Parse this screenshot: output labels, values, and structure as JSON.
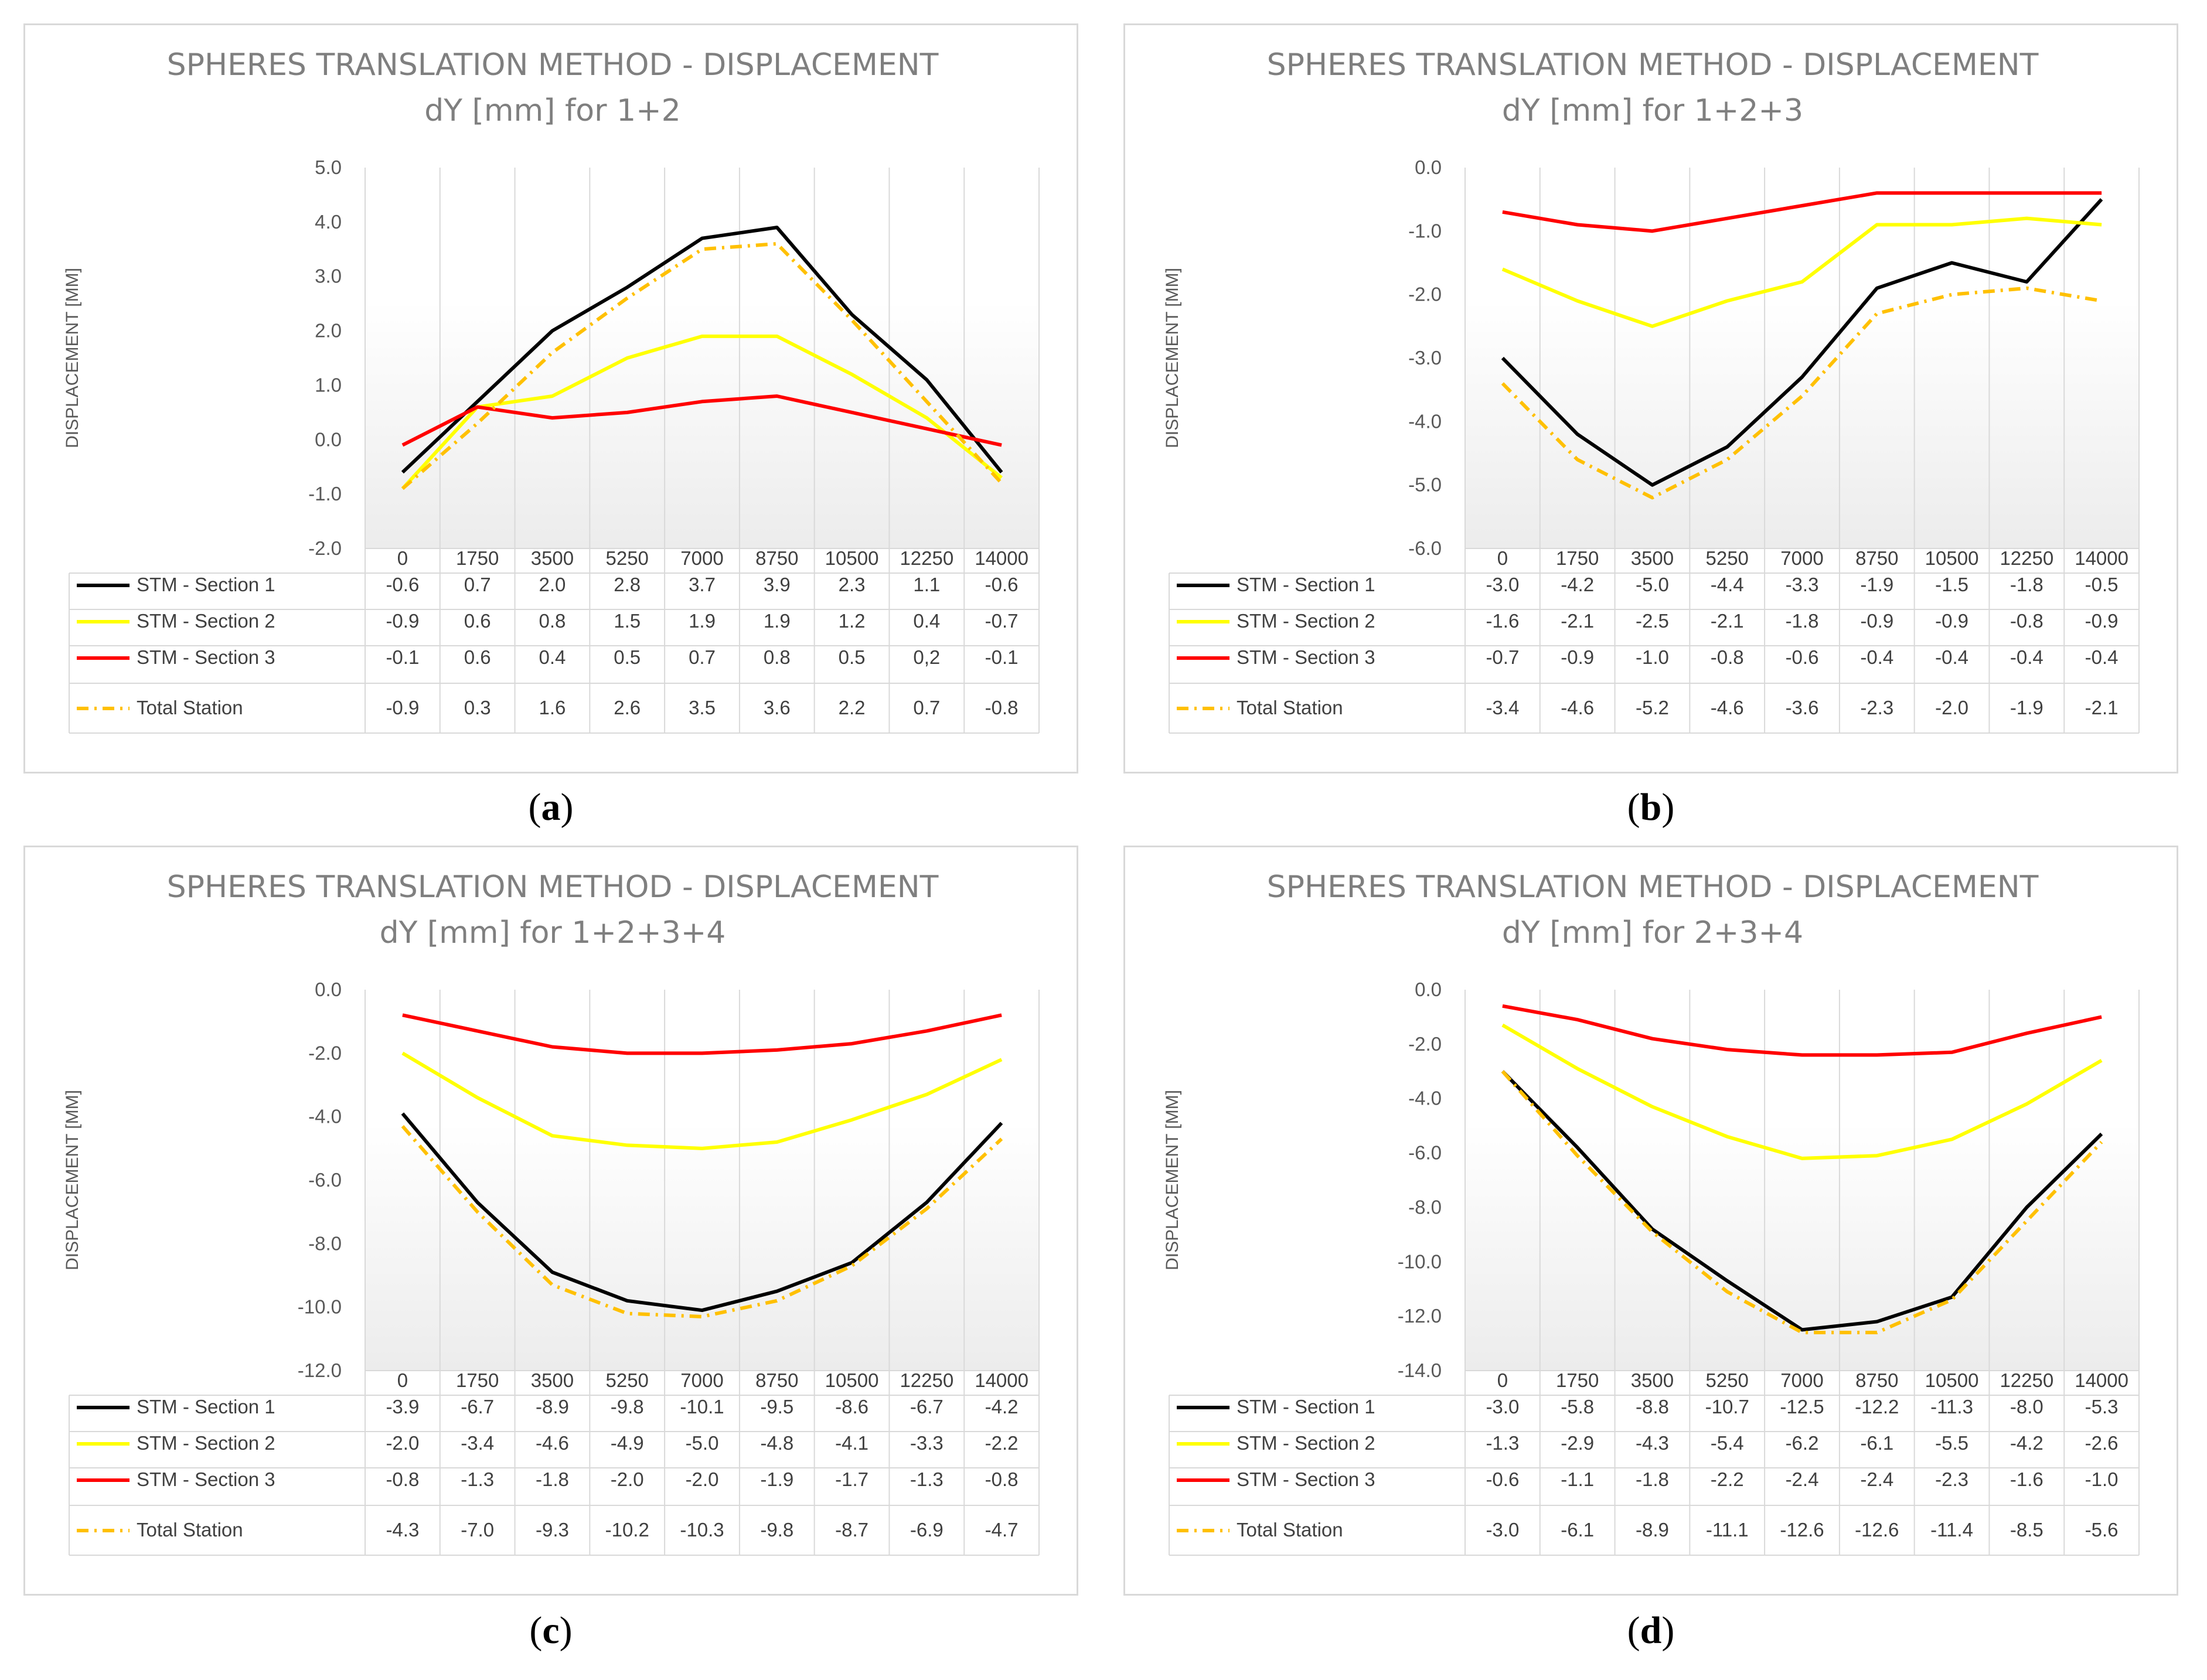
{
  "chart_data": [
    {
      "type": "line",
      "panel": "a",
      "title": "SPHERES TRANSLATION METHOD - DISPLACEMENT",
      "subtitle": "dY [mm] for 1+2",
      "ylabel": "DISPLACEMENT [MM]",
      "ylim": [
        -2.0,
        5.0
      ],
      "ytick_step": 1.0,
      "ytick_labels": [
        "-2.0",
        "-1.0",
        "0.0",
        "1.0",
        "2.0",
        "3.0",
        "4.0",
        "5.0"
      ],
      "categories": [
        "0",
        "1750",
        "3500",
        "5250",
        "7000",
        "8750",
        "10500",
        "12250",
        "14000"
      ],
      "series": [
        {
          "name": "STM - Section 1",
          "color": "#000000",
          "dash": "solid",
          "values": [
            -0.6,
            0.7,
            2.0,
            2.8,
            3.7,
            3.9,
            2.3,
            1.1,
            -0.6
          ],
          "labels": [
            "-0.6",
            "0.7",
            "2.0",
            "2.8",
            "3.7",
            "3.9",
            "2.3",
            "1.1",
            "-0.6"
          ]
        },
        {
          "name": "STM - Section 2",
          "color": "#ffff00",
          "dash": "solid",
          "values": [
            -0.9,
            0.6,
            0.8,
            1.5,
            1.9,
            1.9,
            1.2,
            0.4,
            -0.7
          ],
          "labels": [
            "-0.9",
            "0.6",
            "0.8",
            "1.5",
            "1.9",
            "1.9",
            "1.2",
            "0.4",
            "-0.7"
          ]
        },
        {
          "name": "STM - Section 3",
          "color": "#ff0000",
          "dash": "solid",
          "values": [
            -0.1,
            0.6,
            0.4,
            0.5,
            0.7,
            0.8,
            0.5,
            0.2,
            -0.1
          ],
          "labels": [
            "-0.1",
            "0.6",
            "0.4",
            "0.5",
            "0.7",
            "0.8",
            "0.5",
            "0,2",
            "-0.1"
          ]
        },
        {
          "name": "Total Station",
          "color": "#ffc000",
          "dash": "dashdot",
          "values": [
            -0.9,
            0.3,
            1.6,
            2.6,
            3.5,
            3.6,
            2.2,
            0.7,
            -0.8
          ],
          "labels": [
            "-0.9",
            "0.3",
            "1.6",
            "2.6",
            "3.5",
            "3.6",
            "2.2",
            "0.7",
            "-0.8"
          ]
        }
      ]
    },
    {
      "type": "line",
      "panel": "b",
      "title": "SPHERES TRANSLATION METHOD - DISPLACEMENT",
      "subtitle": "dY [mm] for 1+2+3",
      "ylabel": "DISPLACEMENT [MM]",
      "ylim": [
        -6.0,
        0.0
      ],
      "ytick_step": 1.0,
      "ytick_labels": [
        "-6.0",
        "-5.0",
        "-4.0",
        "-3.0",
        "-2.0",
        "-1.0",
        "0.0"
      ],
      "categories": [
        "0",
        "1750",
        "3500",
        "5250",
        "7000",
        "8750",
        "10500",
        "12250",
        "14000"
      ],
      "series": [
        {
          "name": "STM - Section 1",
          "color": "#000000",
          "dash": "solid",
          "values": [
            -3.0,
            -4.2,
            -5.0,
            -4.4,
            -3.3,
            -1.9,
            -1.5,
            -1.8,
            -0.5
          ],
          "labels": [
            "-3.0",
            "-4.2",
            "-5.0",
            "-4.4",
            "-3.3",
            "-1.9",
            "-1.5",
            "-1.8",
            "-0.5"
          ]
        },
        {
          "name": "STM - Section 2",
          "color": "#ffff00",
          "dash": "solid",
          "values": [
            -1.6,
            -2.1,
            -2.5,
            -2.1,
            -1.8,
            -0.9,
            -0.9,
            -0.8,
            -0.9
          ],
          "labels": [
            "-1.6",
            "-2.1",
            "-2.5",
            "-2.1",
            "-1.8",
            "-0.9",
            "-0.9",
            "-0.8",
            "-0.9"
          ]
        },
        {
          "name": "STM - Section 3",
          "color": "#ff0000",
          "dash": "solid",
          "values": [
            -0.7,
            -0.9,
            -1.0,
            -0.8,
            -0.6,
            -0.4,
            -0.4,
            -0.4,
            -0.4
          ],
          "labels": [
            "-0.7",
            "-0.9",
            "-1.0",
            "-0.8",
            "-0.6",
            "-0.4",
            "-0.4",
            "-0.4",
            "-0.4"
          ]
        },
        {
          "name": "Total Station",
          "color": "#ffc000",
          "dash": "dashdot",
          "values": [
            -3.4,
            -4.6,
            -5.2,
            -4.6,
            -3.6,
            -2.3,
            -2.0,
            -1.9,
            -2.1
          ],
          "labels": [
            "-3.4",
            "-4.6",
            "-5.2",
            "-4.6",
            "-3.6",
            "-2.3",
            "-2.0",
            "-1.9",
            "-2.1"
          ]
        }
      ]
    },
    {
      "type": "line",
      "panel": "c",
      "title": "SPHERES TRANSLATION METHOD - DISPLACEMENT",
      "subtitle": "dY [mm] for 1+2+3+4",
      "ylabel": "DISPLACEMENT [MM]",
      "ylim": [
        -12.0,
        0.0
      ],
      "ytick_step": 2.0,
      "ytick_labels": [
        "-12.0",
        "-10.0",
        "-8.0",
        "-6.0",
        "-4.0",
        "-2.0",
        "0.0"
      ],
      "categories": [
        "0",
        "1750",
        "3500",
        "5250",
        "7000",
        "8750",
        "10500",
        "12250",
        "14000"
      ],
      "series": [
        {
          "name": "STM - Section 1",
          "color": "#000000",
          "dash": "solid",
          "values": [
            -3.9,
            -6.7,
            -8.9,
            -9.8,
            -10.1,
            -9.5,
            -8.6,
            -6.7,
            -4.2
          ],
          "labels": [
            "-3.9",
            "-6.7",
            "-8.9",
            "-9.8",
            "-10.1",
            "-9.5",
            "-8.6",
            "-6.7",
            "-4.2"
          ]
        },
        {
          "name": "STM - Section 2",
          "color": "#ffff00",
          "dash": "solid",
          "values": [
            -2.0,
            -3.4,
            -4.6,
            -4.9,
            -5.0,
            -4.8,
            -4.1,
            -3.3,
            -2.2
          ],
          "labels": [
            "-2.0",
            "-3.4",
            "-4.6",
            "-4.9",
            "-5.0",
            "-4.8",
            "-4.1",
            "-3.3",
            "-2.2"
          ]
        },
        {
          "name": "STM - Section 3",
          "color": "#ff0000",
          "dash": "solid",
          "values": [
            -0.8,
            -1.3,
            -1.8,
            -2.0,
            -2.0,
            -1.9,
            -1.7,
            -1.3,
            -0.8
          ],
          "labels": [
            "-0.8",
            "-1.3",
            "-1.8",
            "-2.0",
            "-2.0",
            "-1.9",
            "-1.7",
            "-1.3",
            "-0.8"
          ]
        },
        {
          "name": "Total Station",
          "color": "#ffc000",
          "dash": "dashdot",
          "values": [
            -4.3,
            -7.0,
            -9.3,
            -10.2,
            -10.3,
            -9.8,
            -8.7,
            -6.9,
            -4.7
          ],
          "labels": [
            "-4.3",
            "-7.0",
            "-9.3",
            "-10.2",
            "-10.3",
            "-9.8",
            "-8.7",
            "-6.9",
            "-4.7"
          ]
        }
      ]
    },
    {
      "type": "line",
      "panel": "d",
      "title": "SPHERES TRANSLATION METHOD - DISPLACEMENT",
      "subtitle": "dY [mm] for 2+3+4",
      "ylabel": "DISPLACEMENT [MM]",
      "ylim": [
        -14.0,
        0.0
      ],
      "ytick_step": 2.0,
      "ytick_labels": [
        "-14.0",
        "-12.0",
        "-10.0",
        "-8.0",
        "-6.0",
        "-4.0",
        "-2.0",
        "0.0"
      ],
      "categories": [
        "0",
        "1750",
        "3500",
        "5250",
        "7000",
        "8750",
        "10500",
        "12250",
        "14000"
      ],
      "series": [
        {
          "name": "STM - Section 1",
          "color": "#000000",
          "dash": "solid",
          "values": [
            -3.0,
            -5.8,
            -8.8,
            -10.7,
            -12.5,
            -12.2,
            -11.3,
            -8.0,
            -5.3
          ],
          "labels": [
            "-3.0",
            "-5.8",
            "-8.8",
            "-10.7",
            "-12.5",
            "-12.2",
            "-11.3",
            "-8.0",
            "-5.3"
          ]
        },
        {
          "name": "STM - Section 2",
          "color": "#ffff00",
          "dash": "solid",
          "values": [
            -1.3,
            -2.9,
            -4.3,
            -5.4,
            -6.2,
            -6.1,
            -5.5,
            -4.2,
            -2.6
          ],
          "labels": [
            "-1.3",
            "-2.9",
            "-4.3",
            "-5.4",
            "-6.2",
            "-6.1",
            "-5.5",
            "-4.2",
            "-2.6"
          ]
        },
        {
          "name": "STM - Section 3",
          "color": "#ff0000",
          "dash": "solid",
          "values": [
            -0.6,
            -1.1,
            -1.8,
            -2.2,
            -2.4,
            -2.4,
            -2.3,
            -1.6,
            -1.0
          ],
          "labels": [
            "-0.6",
            "-1.1",
            "-1.8",
            "-2.2",
            "-2.4",
            "-2.4",
            "-2.3",
            "-1.6",
            "-1.0"
          ]
        },
        {
          "name": "Total Station",
          "color": "#ffc000",
          "dash": "dashdot",
          "values": [
            -3.0,
            -6.1,
            -8.9,
            -11.1,
            -12.6,
            -12.6,
            -11.4,
            -8.5,
            -5.6
          ],
          "labels": [
            "-3.0",
            "-6.1",
            "-8.9",
            "-11.1",
            "-12.6",
            "-12.6",
            "-11.4",
            "-8.5",
            "-5.6"
          ]
        }
      ]
    }
  ],
  "captions": [
    "a",
    "b",
    "c",
    "d"
  ]
}
